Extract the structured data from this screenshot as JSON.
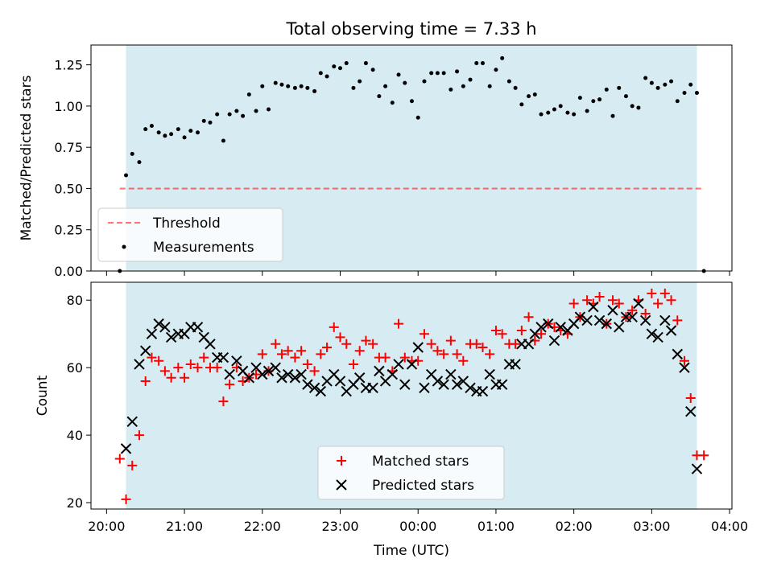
{
  "figure_title": "Total observing time = 7.33 h",
  "colors": {
    "observing_window": "#add8e6",
    "threshold": "#ff0000",
    "measurements": "#000000",
    "matched": "#ff0000",
    "predicted": "#000000"
  },
  "chart_data": [
    {
      "type": "scatter",
      "panel": "top",
      "title": "Total observing time = 7.33 h",
      "xlabel": "",
      "ylabel": "Matched/Predicted stars",
      "x_unit": "hours since 20:00 UTC",
      "xlim": [
        -0.2,
        8.03
      ],
      "ylim": [
        0,
        1.37
      ],
      "yticks": [
        0.0,
        0.25,
        0.5,
        0.75,
        1.0,
        1.25
      ],
      "ytick_labels": [
        "0.00",
        "0.25",
        "0.50",
        "0.75",
        "1.00",
        "1.25"
      ],
      "shaded_span": [
        0.25,
        7.58
      ],
      "threshold": {
        "name": "Threshold",
        "y": 0.5,
        "x": [
          0.17,
          7.67
        ]
      },
      "legend": {
        "location": "lower-left",
        "entries": [
          "Threshold",
          "Measurements"
        ]
      },
      "series": [
        {
          "name": "Measurements",
          "marker": "dot",
          "x": [
            0.17,
            0.25,
            0.33,
            0.42,
            0.5,
            0.58,
            0.67,
            0.75,
            0.83,
            0.92,
            1.0,
            1.08,
            1.17,
            1.25,
            1.33,
            1.42,
            1.5,
            1.58,
            1.67,
            1.75,
            1.83,
            1.92,
            2.0,
            2.08,
            2.17,
            2.25,
            2.33,
            2.42,
            2.5,
            2.58,
            2.67,
            2.75,
            2.83,
            2.92,
            3.0,
            3.08,
            3.17,
            3.25,
            3.33,
            3.42,
            3.5,
            3.58,
            3.67,
            3.75,
            3.83,
            3.92,
            4.0,
            4.08,
            4.17,
            4.25,
            4.33,
            4.42,
            4.5,
            4.58,
            4.67,
            4.75,
            4.83,
            4.92,
            5.0,
            5.08,
            5.17,
            5.25,
            5.33,
            5.42,
            5.5,
            5.58,
            5.67,
            5.75,
            5.83,
            5.92,
            6.0,
            6.08,
            6.17,
            6.25,
            6.33,
            6.42,
            6.5,
            6.58,
            6.67,
            6.75,
            6.83,
            6.92,
            7.0,
            7.08,
            7.17,
            7.25,
            7.33,
            7.42,
            7.5,
            7.58,
            7.67
          ],
          "y": [
            0.0,
            0.58,
            0.71,
            0.66,
            0.86,
            0.88,
            0.84,
            0.82,
            0.83,
            0.86,
            0.81,
            0.85,
            0.84,
            0.91,
            0.9,
            0.95,
            0.79,
            0.95,
            0.97,
            0.94,
            1.07,
            0.97,
            1.12,
            0.98,
            1.14,
            1.13,
            1.12,
            1.11,
            1.12,
            1.11,
            1.09,
            1.2,
            1.18,
            1.24,
            1.23,
            1.26,
            1.11,
            1.15,
            1.26,
            1.22,
            1.06,
            1.12,
            1.02,
            1.19,
            1.14,
            1.03,
            0.93,
            1.15,
            1.2,
            1.2,
            1.2,
            1.1,
            1.21,
            1.12,
            1.16,
            1.26,
            1.26,
            1.12,
            1.22,
            1.29,
            1.15,
            1.11,
            1.01,
            1.06,
            1.07,
            0.95,
            0.96,
            0.98,
            1.0,
            0.96,
            0.95,
            1.05,
            0.97,
            1.03,
            1.04,
            1.1,
            0.94,
            1.11,
            1.06,
            1.0,
            0.99,
            1.17,
            1.14,
            1.11,
            1.13,
            1.15,
            1.03,
            1.08,
            1.13,
            1.08,
            0.0
          ]
        }
      ]
    },
    {
      "type": "scatter",
      "panel": "bottom",
      "title": "",
      "xlabel": "Time (UTC)",
      "ylabel": "Count",
      "x_unit": "hours since 20:00 UTC",
      "xlim": [
        -0.2,
        8.03
      ],
      "ylim": [
        18.1,
        85.3
      ],
      "xticks": [
        0,
        1,
        2,
        3,
        4,
        5,
        6,
        7,
        8
      ],
      "xtick_labels": [
        "20:00",
        "21:00",
        "22:00",
        "23:00",
        "00:00",
        "01:00",
        "02:00",
        "03:00",
        "04:00"
      ],
      "yticks": [
        20,
        40,
        60,
        80
      ],
      "ytick_labels": [
        "20",
        "40",
        "60",
        "80"
      ],
      "shaded_span": [
        0.25,
        7.58
      ],
      "legend": {
        "location": "lower-center",
        "entries": [
          "Matched stars",
          "Predicted stars"
        ]
      },
      "series": [
        {
          "name": "Matched stars",
          "marker": "plus",
          "x": [
            0.17,
            0.25,
            0.33,
            0.42,
            0.5,
            0.58,
            0.67,
            0.75,
            0.83,
            0.92,
            1.0,
            1.08,
            1.17,
            1.25,
            1.33,
            1.42,
            1.5,
            1.58,
            1.67,
            1.75,
            1.83,
            1.92,
            2.0,
            2.08,
            2.17,
            2.25,
            2.33,
            2.42,
            2.5,
            2.58,
            2.67,
            2.75,
            2.83,
            2.92,
            3.0,
            3.08,
            3.17,
            3.25,
            3.33,
            3.42,
            3.5,
            3.58,
            3.67,
            3.75,
            3.83,
            3.92,
            4.0,
            4.08,
            4.17,
            4.25,
            4.33,
            4.42,
            4.5,
            4.58,
            4.67,
            4.75,
            4.83,
            4.92,
            5.0,
            5.08,
            5.17,
            5.25,
            5.33,
            5.42,
            5.5,
            5.58,
            5.67,
            5.75,
            5.83,
            5.92,
            6.0,
            6.08,
            6.17,
            6.25,
            6.33,
            6.42,
            6.5,
            6.58,
            6.67,
            6.75,
            6.83,
            6.92,
            7.0,
            7.08,
            7.17,
            7.25,
            7.33,
            7.42,
            7.5,
            7.58,
            7.67
          ],
          "y": [
            33,
            21,
            31,
            40,
            56,
            63,
            62,
            59,
            57,
            60,
            57,
            61,
            60,
            63,
            60,
            60,
            50,
            55,
            60,
            56,
            57,
            58,
            64,
            59,
            67,
            64,
            65,
            63,
            65,
            61,
            59,
            64,
            66,
            72,
            69,
            67,
            61,
            65,
            68,
            67,
            63,
            63,
            59,
            73,
            63,
            62,
            62,
            70,
            67,
            65,
            64,
            68,
            64,
            62,
            67,
            67,
            66,
            64,
            71,
            70,
            67,
            67,
            71,
            75,
            68,
            70,
            73,
            72,
            71,
            70,
            79,
            75,
            80,
            79,
            81,
            73,
            80,
            79,
            75,
            77,
            80,
            76,
            82,
            79,
            82,
            80,
            74,
            62,
            51,
            34,
            34
          ]
        },
        {
          "name": "Predicted stars",
          "marker": "x",
          "x": [
            0.25,
            0.33,
            0.42,
            0.5,
            0.58,
            0.67,
            0.75,
            0.83,
            0.92,
            1.0,
            1.08,
            1.17,
            1.25,
            1.33,
            1.42,
            1.5,
            1.58,
            1.67,
            1.75,
            1.83,
            1.92,
            2.0,
            2.08,
            2.17,
            2.25,
            2.33,
            2.42,
            2.5,
            2.58,
            2.67,
            2.75,
            2.83,
            2.92,
            3.0,
            3.08,
            3.17,
            3.25,
            3.33,
            3.42,
            3.5,
            3.58,
            3.67,
            3.75,
            3.83,
            3.92,
            4.0,
            4.08,
            4.17,
            4.25,
            4.33,
            4.42,
            4.5,
            4.58,
            4.67,
            4.75,
            4.83,
            4.92,
            5.0,
            5.08,
            5.17,
            5.25,
            5.33,
            5.42,
            5.5,
            5.58,
            5.67,
            5.75,
            5.83,
            5.92,
            6.0,
            6.08,
            6.17,
            6.25,
            6.33,
            6.42,
            6.5,
            6.58,
            6.67,
            6.75,
            6.83,
            6.92,
            7.0,
            7.08,
            7.17,
            7.25,
            7.33,
            7.42,
            7.5,
            7.58
          ],
          "y": [
            36,
            44,
            61,
            65,
            70,
            73,
            72,
            69,
            70,
            70,
            72,
            72,
            69,
            67,
            63,
            63,
            58,
            62,
            59,
            57,
            60,
            58,
            59,
            60,
            57,
            58,
            57,
            58,
            55,
            54,
            53,
            56,
            58,
            56,
            53,
            55,
            57,
            54,
            54,
            59,
            56,
            58,
            61,
            55,
            61,
            66,
            54,
            58,
            56,
            55,
            58,
            55,
            56,
            54,
            53,
            53,
            58,
            55,
            55,
            61,
            61,
            67,
            67,
            70,
            72,
            73,
            68,
            72,
            71,
            73,
            75,
            74,
            78,
            74,
            73,
            77,
            72,
            75,
            75,
            79,
            74,
            70,
            69,
            74,
            71,
            64,
            60,
            47,
            30
          ]
        }
      ]
    }
  ]
}
